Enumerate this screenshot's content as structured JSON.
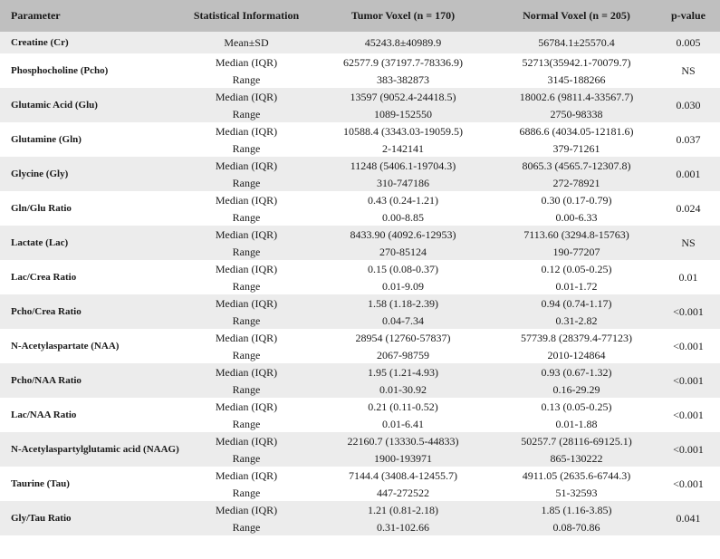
{
  "header": {
    "parameter": "Parameter",
    "stat": "Statistical Information",
    "tumor": "Tumor Voxel (n = 170)",
    "normal": "Normal Voxel (n = 205)",
    "pvalue": "p-value"
  },
  "rows": [
    {
      "name": "Creatine (Cr)",
      "stats": [
        "Mean±SD"
      ],
      "tumor": [
        "45243.8±40989.9"
      ],
      "normal": [
        "56784.1±25570.4"
      ],
      "p": "0.005"
    },
    {
      "name": "Phosphocholine (Pcho)",
      "stats": [
        "Median (IQR)",
        "Range"
      ],
      "tumor": [
        "62577.9 (37197.7-78336.9)",
        "383-382873"
      ],
      "normal": [
        "52713(35942.1-70079.7)",
        "3145-188266"
      ],
      "p": "NS"
    },
    {
      "name": "Glutamic Acid (Glu)",
      "stats": [
        "Median (IQR)",
        "Range"
      ],
      "tumor": [
        "13597 (9052.4-24418.5)",
        "1089-152550"
      ],
      "normal": [
        "18002.6 (9811.4-33567.7)",
        "2750-98338"
      ],
      "p": "0.030"
    },
    {
      "name": "Glutamine (Gln)",
      "stats": [
        "Median (IQR)",
        "Range"
      ],
      "tumor": [
        "10588.4 (3343.03-19059.5)",
        "2-142141"
      ],
      "normal": [
        "6886.6 (4034.05-12181.6)",
        "379-71261"
      ],
      "p": "0.037"
    },
    {
      "name": "Glycine (Gly)",
      "stats": [
        "Median (IQR)",
        "Range"
      ],
      "tumor": [
        "11248 (5406.1-19704.3)",
        "310-747186"
      ],
      "normal": [
        "8065.3 (4565.7-12307.8)",
        "272-78921"
      ],
      "p": "0.001"
    },
    {
      "name": "Gln/Glu Ratio",
      "stats": [
        "Median (IQR)",
        "Range"
      ],
      "tumor": [
        "0.43 (0.24-1.21)",
        "0.00-8.85"
      ],
      "normal": [
        "0.30 (0.17-0.79)",
        "0.00-6.33"
      ],
      "p": "0.024"
    },
    {
      "name": "Lactate (Lac)",
      "stats": [
        "Median (IQR)",
        "Range"
      ],
      "tumor": [
        "8433.90 (4092.6-12953)",
        "270-85124"
      ],
      "normal": [
        "7113.60 (3294.8-15763)",
        "190-77207"
      ],
      "p": "NS"
    },
    {
      "name": "Lac/Crea Ratio",
      "stats": [
        "Median (IQR)",
        "Range"
      ],
      "tumor": [
        "0.15 (0.08-0.37)",
        "0.01-9.09"
      ],
      "normal": [
        "0.12 (0.05-0.25)",
        "0.01-1.72"
      ],
      "p": "0.01"
    },
    {
      "name": "Pcho/Crea Ratio",
      "stats": [
        "Median (IQR)",
        "Range"
      ],
      "tumor": [
        "1.58 (1.18-2.39)",
        "0.04-7.34"
      ],
      "normal": [
        "0.94 (0.74-1.17)",
        "0.31-2.82"
      ],
      "p": "<0.001"
    },
    {
      "name": "N-Acetylaspartate (NAA)",
      "stats": [
        "Median (IQR)",
        "Range"
      ],
      "tumor": [
        "28954 (12760-57837)",
        "2067-98759"
      ],
      "normal": [
        "57739.8 (28379.4-77123)",
        "2010-124864"
      ],
      "p": "<0.001"
    },
    {
      "name": "Pcho/NAA Ratio",
      "stats": [
        "Median (IQR)",
        "Range"
      ],
      "tumor": [
        "1.95 (1.21-4.93)",
        "0.01-30.92"
      ],
      "normal": [
        "0.93 (0.67-1.32)",
        "0.16-29.29"
      ],
      "p": "<0.001"
    },
    {
      "name": "Lac/NAA Ratio",
      "stats": [
        "Median (IQR)",
        "Range"
      ],
      "tumor": [
        "0.21 (0.11-0.52)",
        "0.01-6.41"
      ],
      "normal": [
        "0.13 (0.05-0.25)",
        "0.01-1.88"
      ],
      "p": "<0.001"
    },
    {
      "name": "N-Acetylaspartylglutamic acid (NAAG)",
      "stats": [
        "Median (IQR)",
        "Range"
      ],
      "tumor": [
        "22160.7 (13330.5-44833)",
        "1900-193971"
      ],
      "normal": [
        "50257.7 (28116-69125.1)",
        "865-130222"
      ],
      "p": "<0.001"
    },
    {
      "name": "Taurine (Tau)",
      "stats": [
        "Median (IQR)",
        "Range"
      ],
      "tumor": [
        "7144.4 (3408.4-12455.7)",
        "447-272522"
      ],
      "normal": [
        "4911.05 (2635.6-6744.3)",
        "51-32593"
      ],
      "p": "<0.001"
    },
    {
      "name": "Gly/Tau Ratio",
      "stats": [
        "Median (IQR)",
        "Range"
      ],
      "tumor": [
        "1.21 (0.81-2.18)",
        "0.31-102.66"
      ],
      "normal": [
        "1.85 (1.16-3.85)",
        "0.08-70.86"
      ],
      "p": "0.041"
    }
  ]
}
